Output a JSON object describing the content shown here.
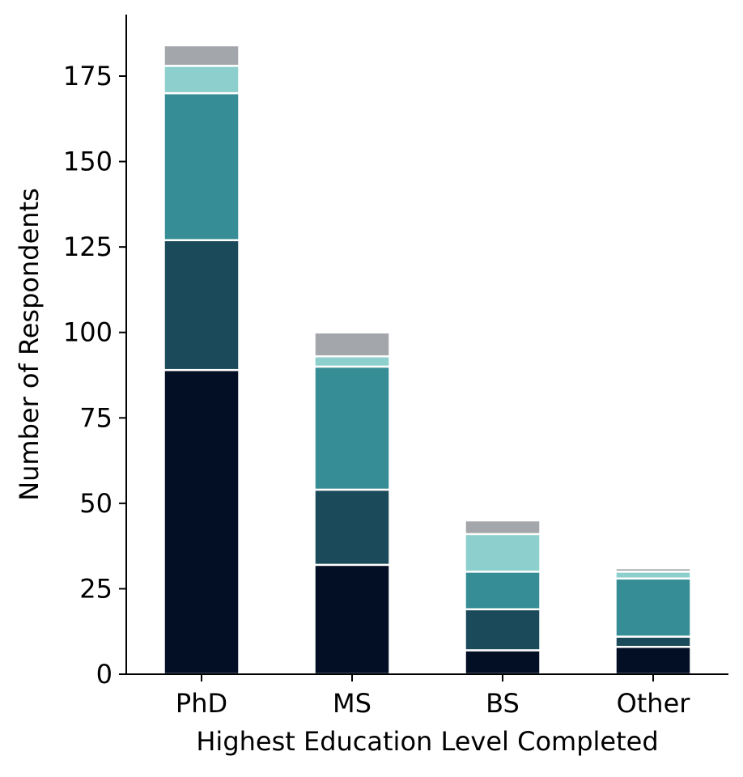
{
  "chart_data": {
    "type": "bar",
    "stacked": true,
    "title": "",
    "xlabel": "Highest Education Level Completed",
    "ylabel": "Number of Respondents",
    "categories": [
      "PhD",
      "MS",
      "BS",
      "Other"
    ],
    "ylim": [
      0,
      193
    ],
    "yticks": [
      0,
      25,
      50,
      75,
      100,
      125,
      150,
      175
    ],
    "ytick_labels": [
      "0",
      "25",
      "50",
      "75",
      "100",
      "125",
      "150",
      "175"
    ],
    "grid": false,
    "legend": "none",
    "series": [
      {
        "color": "#020f25",
        "values": [
          89,
          32,
          7,
          8
        ]
      },
      {
        "color": "#1b4a5a",
        "values": [
          38,
          22,
          12,
          3
        ]
      },
      {
        "color": "#378d95",
        "values": [
          43,
          36,
          11,
          17
        ]
      },
      {
        "color": "#8ccfcd",
        "values": [
          8,
          3,
          11,
          2
        ]
      },
      {
        "color": "#a3a6aa",
        "values": [
          6,
          7,
          4,
          1
        ]
      }
    ]
  }
}
